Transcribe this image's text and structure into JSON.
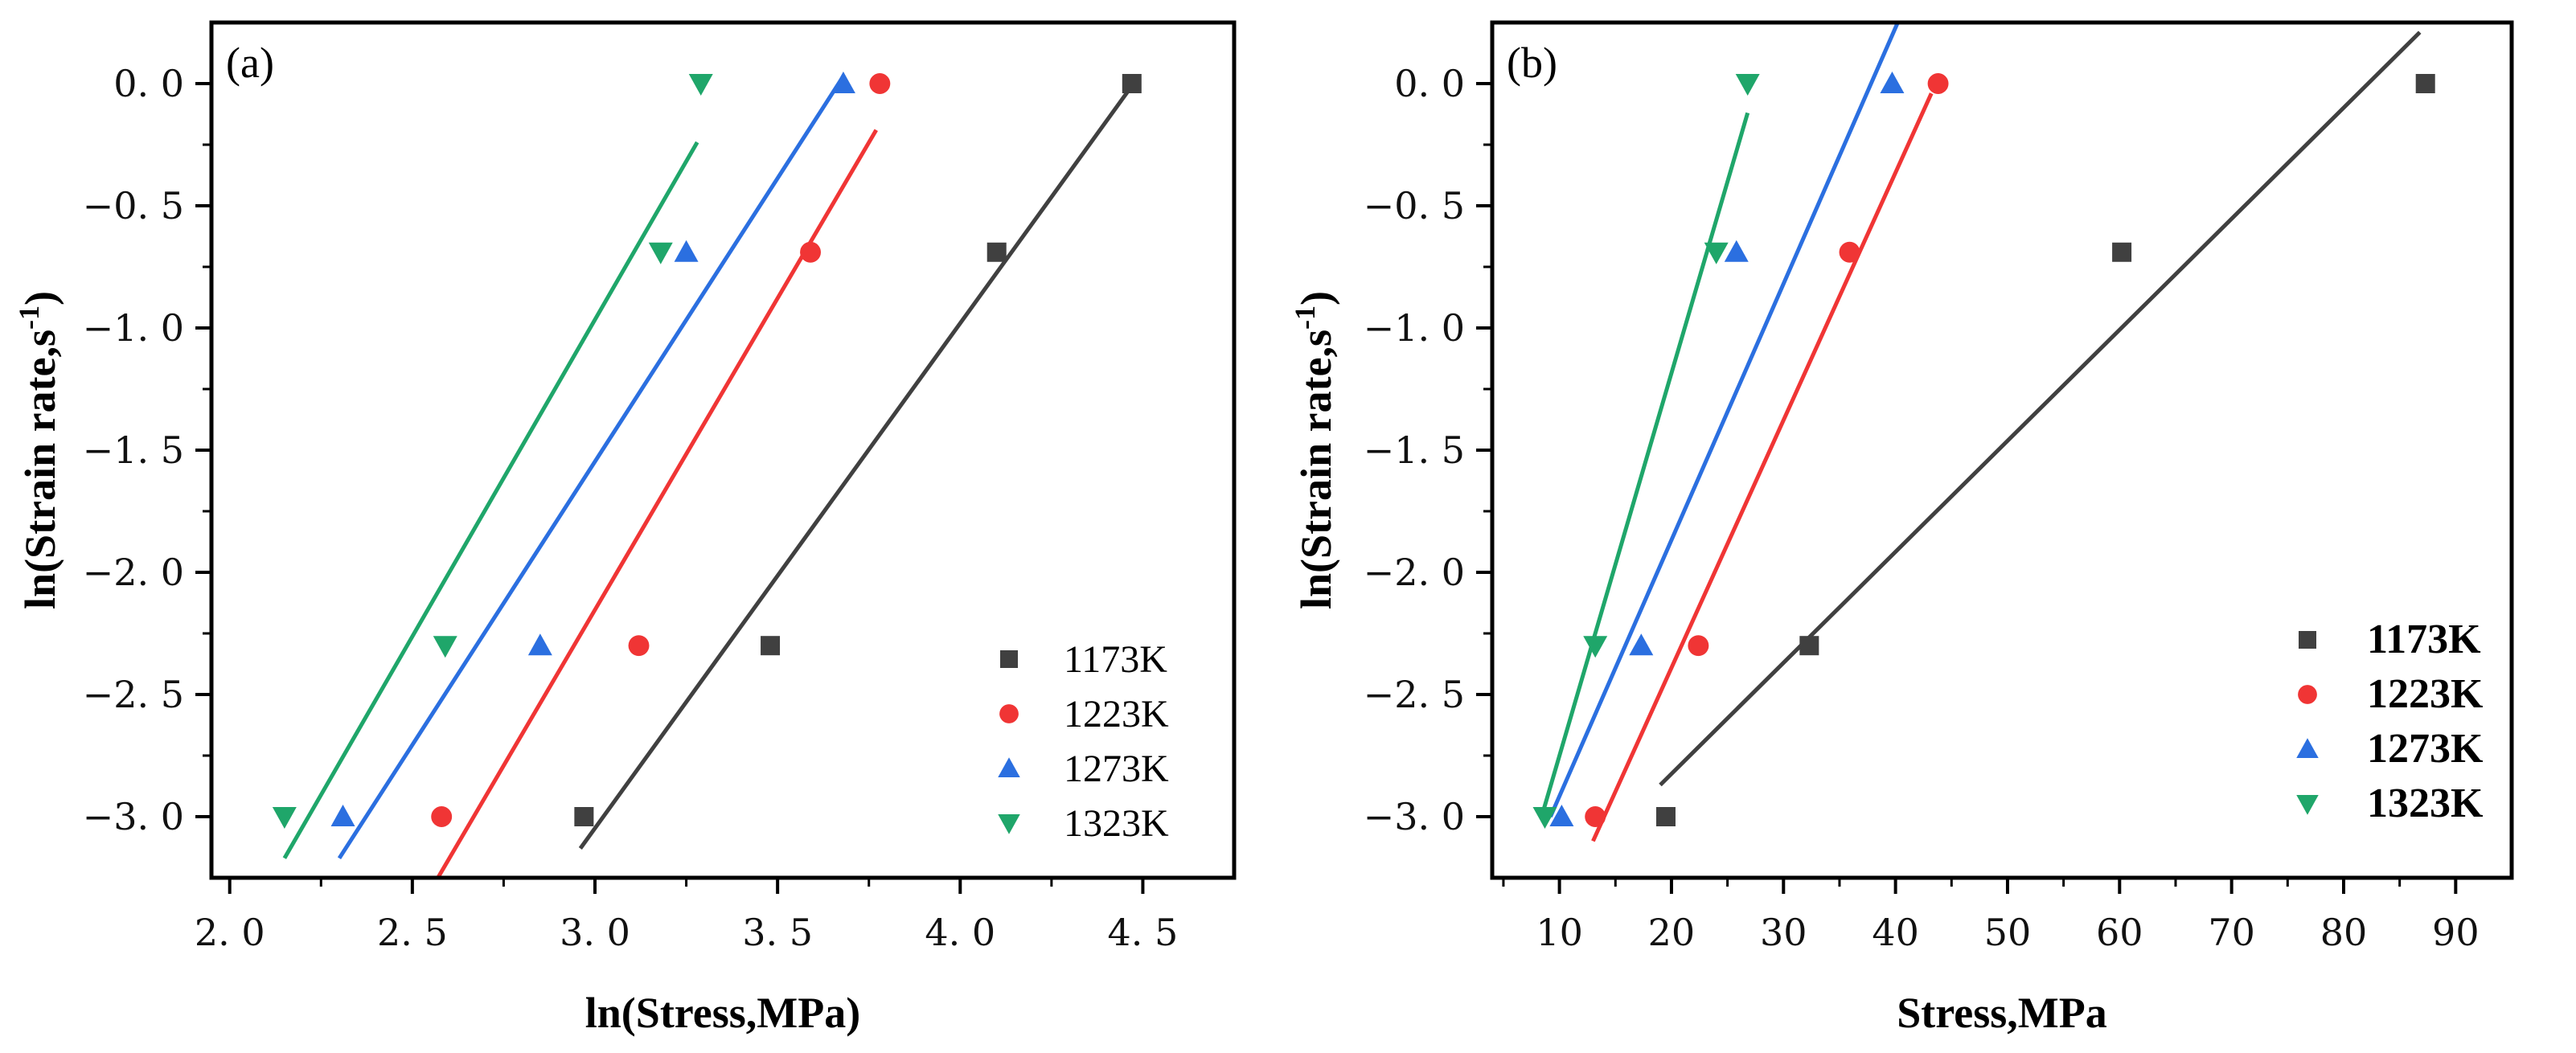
{
  "chart_data": [
    {
      "panel": "(a)",
      "type": "scatter",
      "xlabel": "ln(Stress,MPa)",
      "ylabel": "ln(Strain rate,s",
      "ylabel_sup": "-1",
      "ylabel_close": ")",
      "xlim": [
        1.95,
        4.75
      ],
      "ylim": [
        -3.25,
        0.25
      ],
      "xticks": [
        2.0,
        2.5,
        3.0,
        3.5,
        4.0,
        4.5
      ],
      "xtick_labels": [
        "2. 0",
        "2. 5",
        "3. 0",
        "3. 5",
        "4. 0",
        "4. 5"
      ],
      "yticks": [
        0.0,
        -0.5,
        -1.0,
        -1.5,
        -2.0,
        -2.5,
        -3.0
      ],
      "ytick_labels": [
        "0. 0",
        "−0. 5",
        "−1. 0",
        "−1. 5",
        "−2. 0",
        "−2. 5",
        "−3. 0"
      ],
      "legend_position": "bottom-right",
      "legend_bold": false,
      "series": [
        {
          "name": "1173K",
          "color": "#404040",
          "marker": "square",
          "x": [
            2.97,
            3.48,
            4.1,
            4.47
          ],
          "y": [
            -3.0,
            -2.3,
            -0.69,
            0.0
          ],
          "fit": [
            [
              2.96,
              -3.13
            ],
            [
              4.46,
              -0.03
            ]
          ]
        },
        {
          "name": "1223K",
          "color": "#f03535",
          "marker": "circle",
          "x": [
            2.58,
            3.12,
            3.59,
            3.78
          ],
          "y": [
            -3.0,
            -2.3,
            -0.69,
            0.0
          ],
          "fit": [
            [
              2.57,
              -3.25
            ],
            [
              3.77,
              -0.19
            ]
          ]
        },
        {
          "name": "1273K",
          "color": "#2b6fe0",
          "marker": "triangle-up",
          "x": [
            2.31,
            2.85,
            3.25,
            3.68
          ],
          "y": [
            -3.0,
            -2.3,
            -0.69,
            0.0
          ],
          "fit": [
            [
              2.3,
              -3.17
            ],
            [
              3.68,
              0.03
            ]
          ]
        },
        {
          "name": "1323K",
          "color": "#1fa66a",
          "marker": "triangle-down",
          "x": [
            2.15,
            2.59,
            3.18,
            3.29
          ],
          "y": [
            -3.0,
            -2.3,
            -0.69,
            0.0
          ],
          "fit": [
            [
              2.15,
              -3.17
            ],
            [
              3.28,
              -0.24
            ]
          ]
        }
      ]
    },
    {
      "panel": "(b)",
      "type": "scatter",
      "xlabel": "Stress,MPa",
      "ylabel": "ln(Strain rate,s",
      "ylabel_sup": "-1",
      "ylabel_close": ")",
      "xlim": [
        4,
        95
      ],
      "ylim": [
        -3.25,
        0.25
      ],
      "xticks": [
        10,
        20,
        30,
        40,
        50,
        60,
        70,
        80,
        90
      ],
      "xtick_labels": [
        "10",
        "20",
        "30",
        "40",
        "50",
        "60",
        "70",
        "80",
        "90"
      ],
      "yticks": [
        0.0,
        -0.5,
        -1.0,
        -1.5,
        -2.0,
        -2.5,
        -3.0
      ],
      "ytick_labels": [
        "0. 0",
        "−0. 5",
        "−1. 0",
        "−1. 5",
        "−2. 0",
        "−2. 5",
        "−3. 0"
      ],
      "legend_position": "bottom-right",
      "legend_bold": true,
      "series": [
        {
          "name": "1173K",
          "color": "#404040",
          "marker": "square",
          "x": [
            19.5,
            32.3,
            60.2,
            87.3
          ],
          "y": [
            -3.0,
            -2.3,
            -0.69,
            0.0
          ],
          "fit": [
            [
              19.0,
              -2.87
            ],
            [
              86.8,
              0.21
            ]
          ]
        },
        {
          "name": "1223K",
          "color": "#f03535",
          "marker": "circle",
          "x": [
            13.2,
            22.4,
            35.9,
            43.8
          ],
          "y": [
            -3.0,
            -2.3,
            -0.69,
            0.0
          ],
          "fit": [
            [
              13.0,
              -3.1
            ],
            [
              43.2,
              -0.04
            ]
          ]
        },
        {
          "name": "1273K",
          "color": "#2b6fe0",
          "marker": "triangle-up",
          "x": [
            10.2,
            17.3,
            25.8,
            39.7
          ],
          "y": [
            -3.0,
            -2.3,
            -0.69,
            0.0
          ],
          "fit": [
            [
              9.2,
              -3.0
            ],
            [
              40.2,
              0.25
            ]
          ]
        },
        {
          "name": "1323K",
          "color": "#1fa66a",
          "marker": "triangle-down",
          "x": [
            8.7,
            13.2,
            24.0,
            26.8
          ],
          "y": [
            -3.0,
            -2.3,
            -0.69,
            0.0
          ],
          "fit": [
            [
              8.6,
              -2.97
            ],
            [
              26.8,
              -0.12
            ]
          ]
        }
      ]
    }
  ]
}
